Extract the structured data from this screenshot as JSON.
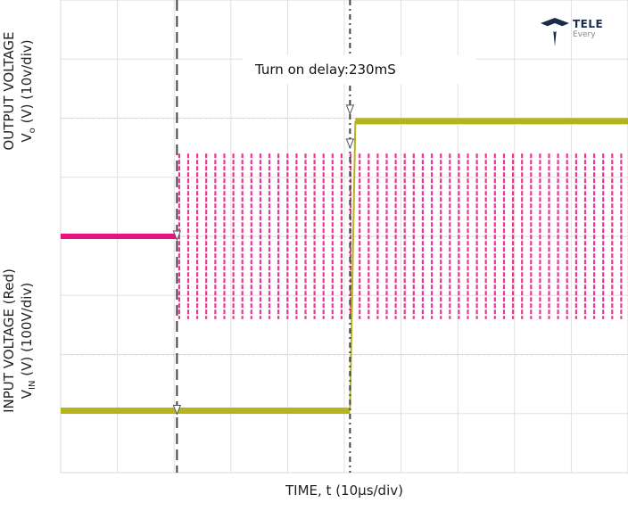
{
  "chart_data": {
    "type": "line",
    "title": "",
    "annotation": "Turn on delay:230mS",
    "xlabel": "TIME, t (10µs/div)",
    "ylabel_output_line1": "OUTPUT VOLTAGE",
    "ylabel_output_line2_prefix": "V",
    "ylabel_output_line2_sub": "o",
    "ylabel_output_line2_suffix": " (V) (10v/div)",
    "ylabel_input_line1": "INPUT VOLTAGE (Red)",
    "ylabel_input_line2_prefix": "V",
    "ylabel_input_line2_sub": "IN",
    "ylabel_input_line2_suffix": " (V) (100V/div)",
    "x_divisions": 10,
    "y_divisions": 8,
    "grid": true,
    "series": [
      {
        "color": "#e8127d",
        "ac_start_div": 2.05,
        "ac_cycles": 50,
        "level_before_div": 4.0,
        "peak_high_div": 5.4,
        "peak_low_div": 2.6
      },
      {
        "color": "#b4b41c",
        "step_div": 5.1,
        "level_low_div": 1.05,
        "level_high_div": 5.95
      }
    ],
    "cursors_div": [
      2.05,
      5.1
    ]
  },
  "logo": {
    "name": "TELE",
    "tagline": "Every"
  }
}
